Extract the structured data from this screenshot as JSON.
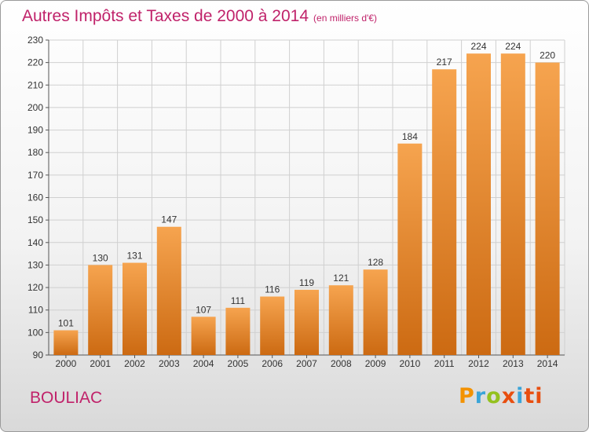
{
  "header": {
    "title": "Autres Impôts et Taxes de 2000 à 2014",
    "subtitle": "(en milliers d'€)"
  },
  "footer": {
    "commune": "BOULIAC",
    "logo_letters": [
      "P",
      "r",
      "o",
      "x",
      "i",
      "ti"
    ]
  },
  "colors": {
    "title": "#c0226a",
    "bar_light": "#f6a44f",
    "bar_dark": "#cc6a12",
    "grid": "#d0d0d0"
  },
  "chart_data": {
    "type": "bar",
    "title": "Autres Impôts et Taxes de 2000 à 2014",
    "subtitle": "(en milliers d'€)",
    "xlabel": "",
    "ylabel": "",
    "categories": [
      "2000",
      "2001",
      "2002",
      "2003",
      "2004",
      "2005",
      "2006",
      "2007",
      "2008",
      "2009",
      "2010",
      "2011",
      "2012",
      "2013",
      "2014"
    ],
    "values": [
      101,
      130,
      131,
      147,
      107,
      111,
      116,
      119,
      121,
      128,
      184,
      217,
      224,
      224,
      220
    ],
    "ylim": [
      90,
      230
    ],
    "yticks": [
      90,
      100,
      110,
      120,
      130,
      140,
      150,
      160,
      170,
      180,
      190,
      200,
      210,
      220,
      230
    ],
    "grid": true,
    "data_labels": true
  }
}
